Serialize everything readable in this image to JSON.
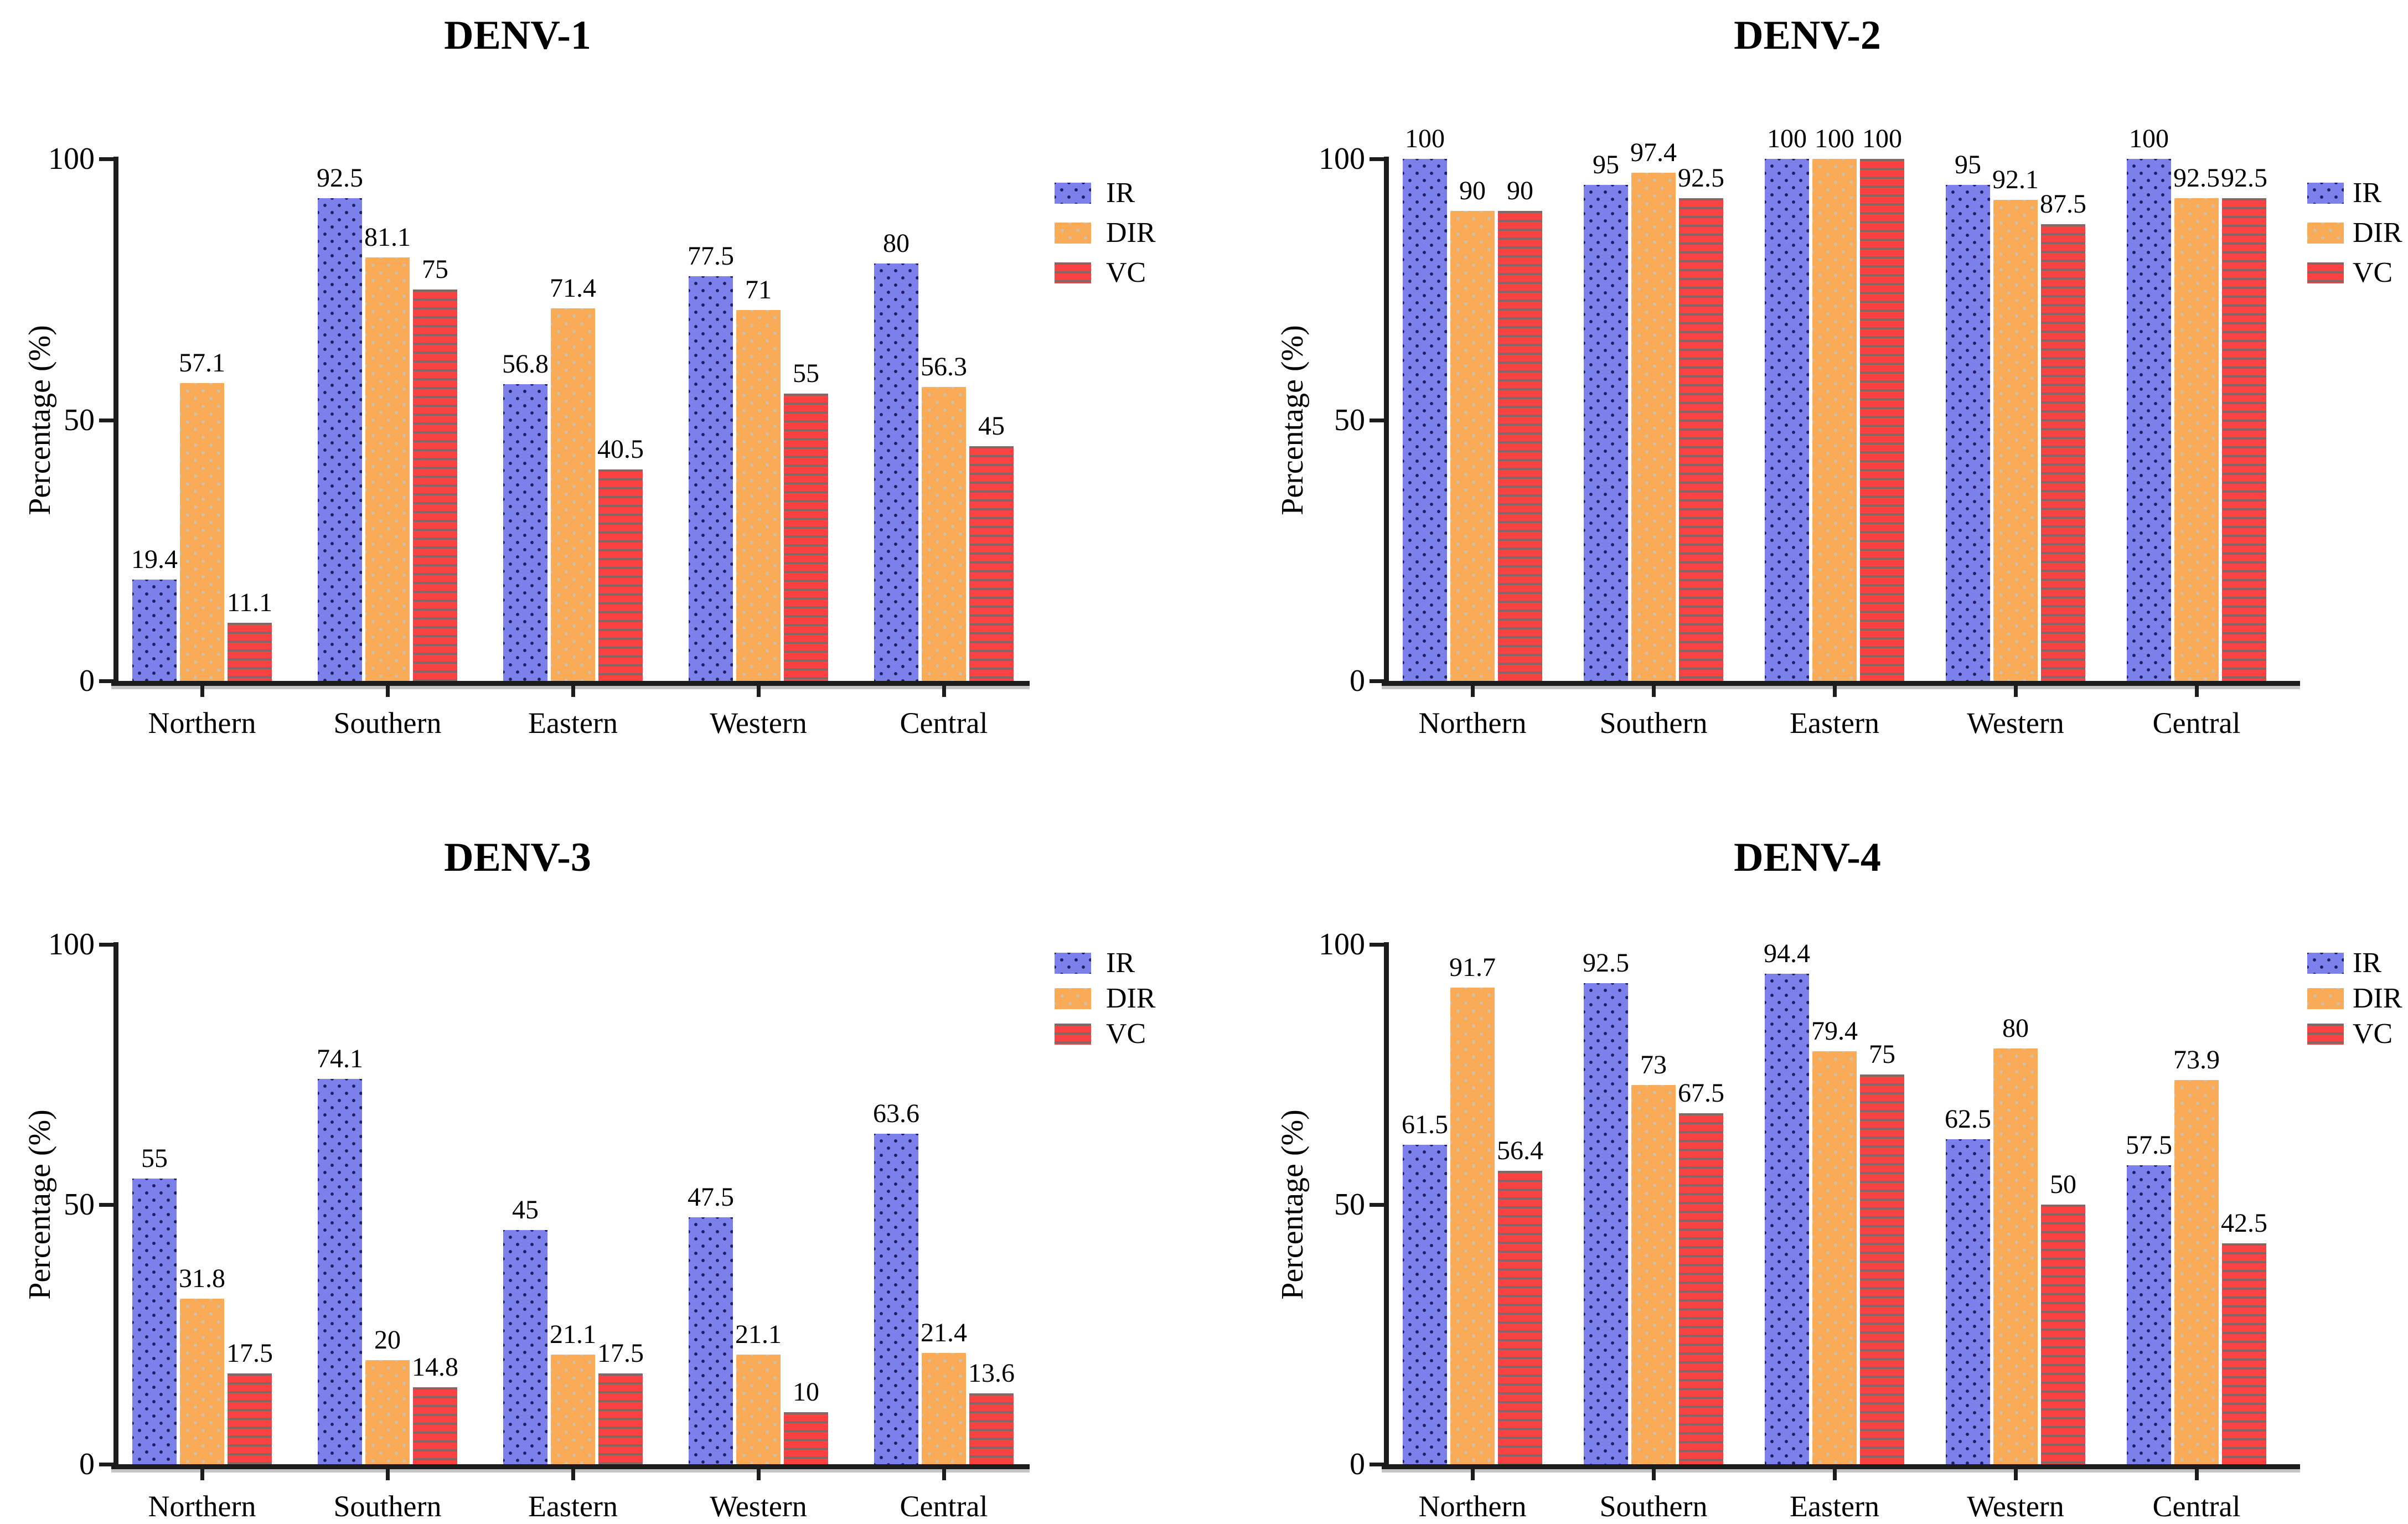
{
  "figure": {
    "series_names": [
      "IR",
      "DIR",
      "VC"
    ],
    "categories": [
      "Northern",
      "Southern",
      "Eastern",
      "Western",
      "Central"
    ],
    "y_axis": {
      "label": "Percentage (%)",
      "ticks": [
        0,
        50,
        100
      ],
      "min": 0,
      "max": 100
    },
    "colors": {
      "ir_fill": "#7c80ea",
      "ir_dot": "#1d1d62",
      "dir_fill": "#f9ab58",
      "dir_dot": "#cfc0ac",
      "vc_fill": "#fb4242",
      "vc_stripe": "#6e6e6e",
      "axis": "#1c1c1c",
      "text": "#000000",
      "background": "#ffffff"
    }
  },
  "chart_data": [
    {
      "type": "bar",
      "title": "DENV-1",
      "xlabel": "",
      "ylabel": "Percentage (%)",
      "ylim": [
        0,
        100
      ],
      "yticks": [
        0,
        50,
        100
      ],
      "grid": false,
      "legend_position": "right-top",
      "categories": [
        "Northern",
        "Southern",
        "Eastern",
        "Western",
        "Central"
      ],
      "series": [
        {
          "name": "IR",
          "values": [
            19.4,
            92.5,
            56.8,
            77.5,
            80
          ]
        },
        {
          "name": "DIR",
          "values": [
            57.1,
            81.1,
            71.4,
            71,
            56.3
          ]
        },
        {
          "name": "VC",
          "values": [
            11.1,
            75,
            40.5,
            55,
            45
          ]
        }
      ]
    },
    {
      "type": "bar",
      "title": "DENV-2",
      "xlabel": "",
      "ylabel": "Percentage (%)",
      "ylim": [
        0,
        100
      ],
      "yticks": [
        0,
        50,
        100
      ],
      "grid": false,
      "legend_position": "right-top",
      "categories": [
        "Northern",
        "Southern",
        "Eastern",
        "Western",
        "Central"
      ],
      "series": [
        {
          "name": "IR",
          "values": [
            100,
            95,
            100,
            95,
            100
          ]
        },
        {
          "name": "DIR",
          "values": [
            90,
            97.4,
            100,
            92.1,
            92.5
          ]
        },
        {
          "name": "VC",
          "values": [
            90,
            92.5,
            100,
            87.5,
            92.5
          ]
        }
      ]
    },
    {
      "type": "bar",
      "title": "DENV-3",
      "xlabel": "",
      "ylabel": "Percentage (%)",
      "ylim": [
        0,
        100
      ],
      "yticks": [
        0,
        50,
        100
      ],
      "grid": false,
      "legend_position": "right-top",
      "categories": [
        "Northern",
        "Southern",
        "Eastern",
        "Western",
        "Central"
      ],
      "series": [
        {
          "name": "IR",
          "values": [
            55,
            74.1,
            45,
            47.5,
            63.6
          ]
        },
        {
          "name": "DIR",
          "values": [
            31.8,
            20,
            21.1,
            21.1,
            21.4
          ]
        },
        {
          "name": "VC",
          "values": [
            17.5,
            14.8,
            17.5,
            10,
            13.6
          ]
        }
      ]
    },
    {
      "type": "bar",
      "title": "DENV-4",
      "xlabel": "",
      "ylabel": "Percentage (%)",
      "ylim": [
        0,
        100
      ],
      "yticks": [
        0,
        50,
        100
      ],
      "grid": false,
      "legend_position": "right-top",
      "categories": [
        "Northern",
        "Southern",
        "Eastern",
        "Western",
        "Central"
      ],
      "series": [
        {
          "name": "IR",
          "values": [
            61.5,
            92.5,
            94.4,
            62.5,
            57.5
          ]
        },
        {
          "name": "DIR",
          "values": [
            91.7,
            73,
            79.4,
            80,
            73.9
          ]
        },
        {
          "name": "VC",
          "values": [
            56.4,
            67.5,
            75,
            50,
            42.5
          ]
        }
      ]
    }
  ]
}
